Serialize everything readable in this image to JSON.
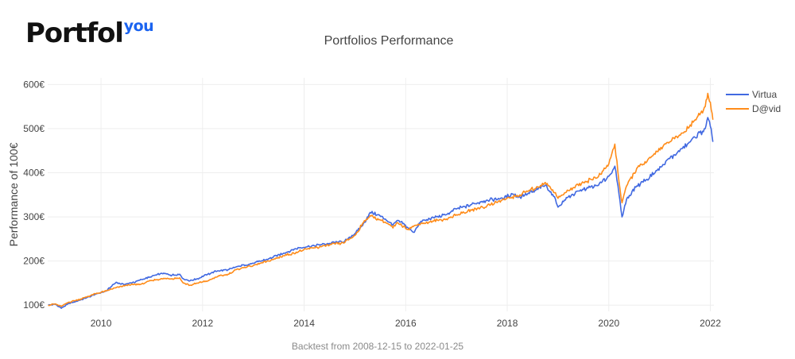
{
  "logo": {
    "main": "Portfol",
    "sup": "you"
  },
  "chart_data": {
    "type": "line",
    "title": "Portfolios Performance",
    "xlabel": "Backtest from 2008-12-15 to 2022-01-25",
    "ylabel": "Performance of 100€",
    "xlim": [
      2008.95,
      2022.07
    ],
    "ylim": [
      86,
      615
    ],
    "x_ticks": [
      2010,
      2012,
      2014,
      2016,
      2018,
      2020,
      2022
    ],
    "y_ticks": [
      100,
      200,
      300,
      400,
      500,
      600
    ],
    "y_tick_suffix": "€",
    "grid": true,
    "legend_position": "top-right",
    "series": [
      {
        "name": "Virtua",
        "color": "#4169e1",
        "points": [
          [
            2008.96,
            100
          ],
          [
            2009.1,
            102
          ],
          [
            2009.22,
            93
          ],
          [
            2009.35,
            103
          ],
          [
            2009.6,
            112
          ],
          [
            2009.9,
            125
          ],
          [
            2010.1,
            132
          ],
          [
            2010.3,
            152
          ],
          [
            2010.45,
            147
          ],
          [
            2010.6,
            150
          ],
          [
            2010.8,
            158
          ],
          [
            2011.0,
            165
          ],
          [
            2011.2,
            172
          ],
          [
            2011.4,
            168
          ],
          [
            2011.55,
            170
          ],
          [
            2011.62,
            160
          ],
          [
            2011.75,
            155
          ],
          [
            2011.9,
            160
          ],
          [
            2012.1,
            170
          ],
          [
            2012.3,
            178
          ],
          [
            2012.5,
            180
          ],
          [
            2012.7,
            188
          ],
          [
            2013.0,
            195
          ],
          [
            2013.3,
            205
          ],
          [
            2013.6,
            218
          ],
          [
            2013.9,
            230
          ],
          [
            2014.2,
            235
          ],
          [
            2014.5,
            240
          ],
          [
            2014.8,
            245
          ],
          [
            2015.0,
            262
          ],
          [
            2015.15,
            280
          ],
          [
            2015.3,
            310
          ],
          [
            2015.45,
            305
          ],
          [
            2015.6,
            295
          ],
          [
            2015.75,
            282
          ],
          [
            2015.85,
            292
          ],
          [
            2016.05,
            275
          ],
          [
            2016.15,
            265
          ],
          [
            2016.3,
            290
          ],
          [
            2016.55,
            298
          ],
          [
            2016.8,
            305
          ],
          [
            2017.0,
            318
          ],
          [
            2017.3,
            328
          ],
          [
            2017.6,
            338
          ],
          [
            2017.9,
            342
          ],
          [
            2018.1,
            352
          ],
          [
            2018.25,
            345
          ],
          [
            2018.4,
            352
          ],
          [
            2018.6,
            362
          ],
          [
            2018.75,
            372
          ],
          [
            2018.95,
            340
          ],
          [
            2019.0,
            322
          ],
          [
            2019.2,
            345
          ],
          [
            2019.5,
            362
          ],
          [
            2019.8,
            372
          ],
          [
            2020.0,
            392
          ],
          [
            2020.12,
            415
          ],
          [
            2020.2,
            352
          ],
          [
            2020.26,
            300
          ],
          [
            2020.35,
            340
          ],
          [
            2020.55,
            370
          ],
          [
            2020.75,
            385
          ],
          [
            2020.95,
            405
          ],
          [
            2021.2,
            432
          ],
          [
            2021.45,
            455
          ],
          [
            2021.7,
            480
          ],
          [
            2021.9,
            500
          ],
          [
            2021.95,
            525
          ],
          [
            2022.0,
            505
          ],
          [
            2022.05,
            470
          ]
        ]
      },
      {
        "name": "D@vid",
        "color": "#ff8c1a",
        "points": [
          [
            2008.96,
            100
          ],
          [
            2009.1,
            103
          ],
          [
            2009.22,
            97
          ],
          [
            2009.35,
            106
          ],
          [
            2009.6,
            114
          ],
          [
            2009.9,
            126
          ],
          [
            2010.1,
            132
          ],
          [
            2010.3,
            140
          ],
          [
            2010.5,
            145
          ],
          [
            2010.8,
            148
          ],
          [
            2011.0,
            156
          ],
          [
            2011.2,
            160
          ],
          [
            2011.4,
            160
          ],
          [
            2011.55,
            162
          ],
          [
            2011.62,
            150
          ],
          [
            2011.75,
            145
          ],
          [
            2011.9,
            150
          ],
          [
            2012.1,
            155
          ],
          [
            2012.3,
            165
          ],
          [
            2012.5,
            170
          ],
          [
            2012.7,
            182
          ],
          [
            2013.0,
            190
          ],
          [
            2013.3,
            200
          ],
          [
            2013.6,
            212
          ],
          [
            2013.9,
            222
          ],
          [
            2014.2,
            230
          ],
          [
            2014.5,
            236
          ],
          [
            2014.8,
            242
          ],
          [
            2015.0,
            258
          ],
          [
            2015.15,
            285
          ],
          [
            2015.3,
            303
          ],
          [
            2015.45,
            296
          ],
          [
            2015.6,
            288
          ],
          [
            2015.75,
            275
          ],
          [
            2015.85,
            286
          ],
          [
            2016.05,
            272
          ],
          [
            2016.15,
            278
          ],
          [
            2016.3,
            285
          ],
          [
            2016.55,
            290
          ],
          [
            2016.8,
            295
          ],
          [
            2017.0,
            305
          ],
          [
            2017.3,
            315
          ],
          [
            2017.6,
            325
          ],
          [
            2017.9,
            338
          ],
          [
            2018.1,
            345
          ],
          [
            2018.25,
            350
          ],
          [
            2018.4,
            358
          ],
          [
            2018.6,
            368
          ],
          [
            2018.75,
            378
          ],
          [
            2018.95,
            355
          ],
          [
            2019.0,
            342
          ],
          [
            2019.2,
            360
          ],
          [
            2019.5,
            378
          ],
          [
            2019.8,
            392
          ],
          [
            2020.0,
            420
          ],
          [
            2020.12,
            465
          ],
          [
            2020.2,
            380
          ],
          [
            2020.26,
            332
          ],
          [
            2020.35,
            370
          ],
          [
            2020.55,
            410
          ],
          [
            2020.75,
            425
          ],
          [
            2020.95,
            448
          ],
          [
            2021.2,
            470
          ],
          [
            2021.45,
            490
          ],
          [
            2021.7,
            520
          ],
          [
            2021.9,
            550
          ],
          [
            2021.95,
            580
          ],
          [
            2022.0,
            560
          ],
          [
            2022.05,
            520
          ]
        ]
      }
    ]
  }
}
